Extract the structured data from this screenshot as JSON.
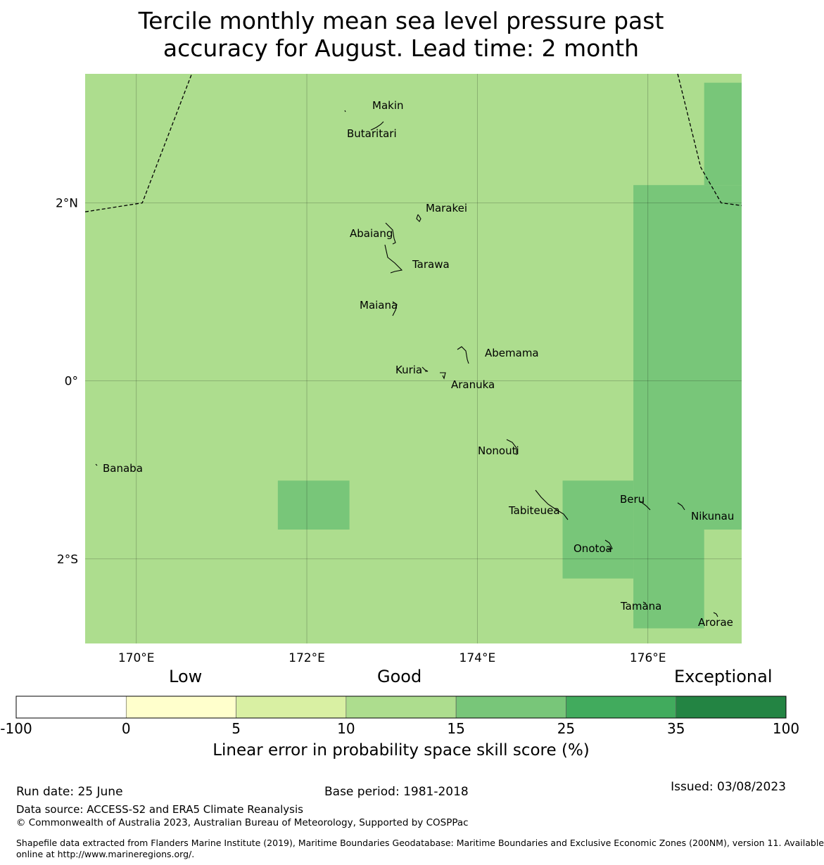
{
  "title": {
    "line1": "Tercile monthly mean sea level pressure past",
    "line2": "accuracy for August. Lead time: 2 month"
  },
  "map": {
    "lon_range": [
      169.4,
      177.1
    ],
    "lat_range": [
      -2.95,
      3.45
    ],
    "lon_ticks": [
      {
        "value": 170,
        "label": "170°E"
      },
      {
        "value": 172,
        "label": "172°E"
      },
      {
        "value": 174,
        "label": "174°E"
      },
      {
        "value": 176,
        "label": "176°E"
      }
    ],
    "lat_ticks": [
      {
        "value": 2,
        "label": "2°N"
      },
      {
        "value": 0,
        "label": "0°"
      },
      {
        "value": -2,
        "label": "2°S"
      }
    ],
    "background_color": "#addd8e",
    "skill_patches": [
      {
        "lon": [
          176.66,
          177.1
        ],
        "lat": [
          2.2,
          3.35
        ],
        "color": "#78c679"
      },
      {
        "lon": [
          175.83,
          177.1
        ],
        "lat": [
          -1.67,
          2.2
        ],
        "color": "#78c679"
      },
      {
        "lon": [
          175.0,
          175.83
        ],
        "lat": [
          -2.22,
          -1.12
        ],
        "color": "#78c679"
      },
      {
        "lon": [
          175.83,
          176.66
        ],
        "lat": [
          -2.78,
          -1.67
        ],
        "color": "#78c679"
      },
      {
        "lon": [
          171.66,
          172.5
        ],
        "lat": [
          -1.67,
          -1.12
        ],
        "color": "#78c679"
      }
    ],
    "islands": [
      {
        "name": "Makin",
        "lon": 173.0,
        "lat": 3.35,
        "label_dx": 0,
        "label_dy": 0
      },
      {
        "name": "Butaritari",
        "lon": 172.77,
        "lat": 3.0,
        "label_dx": 0,
        "label_dy": 0
      },
      {
        "name": "Marakei",
        "lon": 173.28,
        "lat": 2.0,
        "label_dx": 0,
        "label_dy": 0
      },
      {
        "name": "Abaiang",
        "lon": 172.95,
        "lat": 1.85,
        "label_dx": 0,
        "label_dy": 0
      },
      {
        "name": "Tarawa",
        "lon": 173.05,
        "lat": 1.4,
        "label_dx": 0,
        "label_dy": 0
      },
      {
        "name": "Maiana",
        "lon": 173.0,
        "lat": 0.92,
        "label_dx": 0,
        "label_dy": 0
      },
      {
        "name": "Abemama",
        "lon": 173.9,
        "lat": 0.4,
        "label_dx": 0,
        "label_dy": 0
      },
      {
        "name": "Kuria",
        "lon": 173.4,
        "lat": 0.22,
        "label_dx": 0,
        "label_dy": 0
      },
      {
        "name": "Aranuka",
        "lon": 173.63,
        "lat": 0.17,
        "label_dx": 0,
        "label_dy": 0
      },
      {
        "name": "Nonouti",
        "lon": 174.4,
        "lat": -0.65,
        "label_dx": 0,
        "label_dy": 0
      },
      {
        "name": "Banaba",
        "lon": 169.53,
        "lat": -0.87,
        "label_dx": 0,
        "label_dy": 0
      },
      {
        "name": "Tabiteuea",
        "lon": 174.8,
        "lat": -1.35,
        "label_dx": 0,
        "label_dy": 0
      },
      {
        "name": "Beru",
        "lon": 176.0,
        "lat": -1.33,
        "label_dx": 0,
        "label_dy": 0
      },
      {
        "name": "Nikunau",
        "lon": 176.45,
        "lat": -1.37,
        "label_dx": 0,
        "label_dy": 0
      },
      {
        "name": "Onotoa",
        "lon": 175.57,
        "lat": -1.85,
        "label_dx": 0,
        "label_dy": 0
      },
      {
        "name": "Tamana",
        "lon": 175.98,
        "lat": -2.5,
        "label_dx": 0,
        "label_dy": 0
      },
      {
        "name": "Arorae",
        "lon": 176.82,
        "lat": -2.64,
        "label_dx": 0,
        "label_dy": 0
      }
    ],
    "eez_boundaries": [
      [
        [
          169.4,
          1.9
        ],
        [
          170.07,
          2.0
        ],
        [
          170.65,
          3.45
        ]
      ],
      [
        [
          176.35,
          3.45
        ],
        [
          176.62,
          2.4
        ],
        [
          176.86,
          2.0
        ],
        [
          177.1,
          1.97
        ]
      ]
    ]
  },
  "colorbar": {
    "heads": {
      "low": "Low",
      "good": "Good",
      "exceptional": "Exceptional"
    },
    "ticks": [
      "-100",
      "0",
      "5",
      "10",
      "15",
      "25",
      "35",
      "100"
    ],
    "colors": [
      "#ffffff",
      "#ffffcc",
      "#d9f0a3",
      "#addd8e",
      "#78c679",
      "#41ab5d",
      "#238443"
    ],
    "label": "Linear error in probability space skill score (%)"
  },
  "footer": {
    "run_date": "Run date: 25 June",
    "base_period": "Base period: 1981-2018",
    "issued": "Issued: 03/08/2023",
    "data_source": "Data source: ACCESS-S2 and ERA5 Climate Reanalysis",
    "copyright": "© Commonwealth of Australia 2023, Australian Bureau of Meteorology, Supported by COSPPac",
    "shapefile_line1": "Shapefile data extracted from Flanders Marine Institute (2019), Maritime Boundaries Geodatabase: Maritime Boundaries and Exclusive Economic Zones (200NM), version 11. Available",
    "shapefile_line2": "online at http://www.marineregions.org/."
  }
}
